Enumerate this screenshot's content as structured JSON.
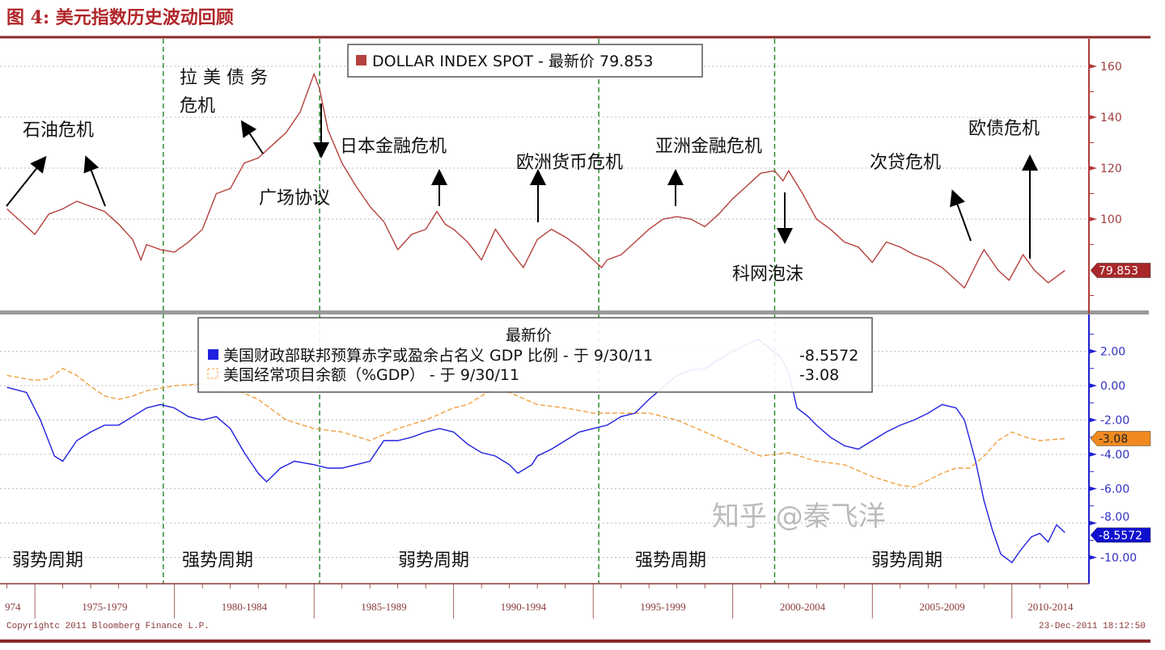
{
  "title": "图 4:  美元指数历史波动回顾",
  "colors": {
    "title": "#b0262a",
    "dollar": "#b5413f",
    "budget": "#2020e0",
    "current_account": "#f0a040",
    "event_line": "#2e8b2e",
    "frame": "#8b2a2a",
    "top_axis": "#b23a3a",
    "bottom_axis": "#2020d0"
  },
  "chart_data": [
    {
      "type": "line",
      "legend": {
        "label": "DOLLAR INDEX SPOT - 最新价  79.853",
        "placement": "top-center"
      },
      "series": [
        {
          "name": "DOLLAR INDEX SPOT",
          "last_value": "79.853",
          "x": [
            1974.0,
            1974.5,
            1975,
            1975.5,
            1976,
            1976.5,
            1977,
            1977.5,
            1978,
            1978.5,
            1978.8,
            1979,
            1979.5,
            1980,
            1980.5,
            1981,
            1981.5,
            1982,
            1982.5,
            1983,
            1983.5,
            1984,
            1984.5,
            1985,
            1985.2,
            1985.5,
            1986,
            1986.5,
            1987,
            1987.5,
            1988,
            1988.5,
            1989,
            1989.4,
            1989.7,
            1990,
            1990.5,
            1991,
            1991.5,
            1992,
            1992.5,
            1993,
            1993.5,
            1994,
            1994.5,
            1995,
            1995.3,
            1995.5,
            1996,
            1996.5,
            1997,
            1997.5,
            1998,
            1998.5,
            1999,
            1999.5,
            2000,
            2000.5,
            2001,
            2001.5,
            2001.8,
            2002,
            2002.5,
            2003,
            2003.5,
            2004,
            2004.5,
            2005,
            2005.5,
            2006,
            2006.5,
            2007,
            2007.5,
            2008,
            2008.3,
            2008.8,
            2009,
            2009.5,
            2009.9,
            2010.4,
            2010.8,
            2011.3,
            2011.9
          ],
          "y": [
            104,
            99,
            94,
            102,
            104,
            107,
            105,
            103,
            98,
            92,
            84,
            90,
            88,
            87,
            91,
            96,
            110,
            112,
            122,
            124,
            129,
            134,
            142,
            157,
            151,
            135,
            122,
            113,
            105,
            99,
            88,
            94,
            96,
            103,
            98,
            96,
            91,
            84,
            96,
            88,
            81,
            92,
            96,
            93,
            89,
            84,
            81,
            84,
            86,
            91,
            96,
            100,
            101,
            100,
            97,
            102,
            108,
            113,
            118,
            119,
            115,
            119,
            110,
            100,
            96,
            91,
            89,
            83,
            91,
            89,
            86,
            84,
            81,
            76,
            73,
            84,
            88,
            80,
            76,
            86,
            80,
            75,
            79.853
          ]
        }
      ],
      "yticks": [
        "160",
        "140",
        "120",
        "100"
      ],
      "ylim": [
        70,
        165
      ]
    },
    {
      "type": "line",
      "legend": {
        "header": "最新价",
        "placement": "top-center",
        "entries": [
          {
            "label": "美国财政部联邦预算赤字或盈余占名义 GDP 比例 -  于 9/30/11",
            "value": "-8.5572"
          },
          {
            "label": "美国经常项目余额（%GDP） -  于 9/30/11",
            "value": "-3.08"
          }
        ]
      },
      "series": [
        {
          "name": "美国财政部联邦预算赤字或盈余占名义 GDP 比例",
          "last_value": "-8.5572",
          "style": "solid",
          "x": [
            1974,
            1974.7,
            1975.2,
            1975.7,
            1976,
            1976.5,
            1977,
            1977.5,
            1978,
            1978.5,
            1979,
            1979.5,
            1980,
            1980.5,
            1981,
            1981.5,
            1982,
            1982.5,
            1983,
            1983.3,
            1983.8,
            1984.3,
            1985,
            1985.5,
            1986,
            1986.5,
            1987,
            1987.5,
            1988,
            1988.5,
            1989,
            1989.5,
            1990,
            1990.5,
            1991,
            1991.5,
            1992,
            1992.3,
            1992.8,
            1993,
            1993.5,
            1994,
            1994.5,
            1995,
            1995.5,
            1996,
            1996.5,
            1997,
            1997.5,
            1998,
            1998.5,
            1999,
            1999.5,
            2000,
            2000.5,
            2000.9,
            2001.3,
            2001.7,
            2002,
            2002.3,
            2002.7,
            2003,
            2003.5,
            2004,
            2004.5,
            2005,
            2005.5,
            2006,
            2006.5,
            2007,
            2007.5,
            2008,
            2008.3,
            2008.7,
            2009,
            2009.3,
            2009.6,
            2010,
            2010.3,
            2010.7,
            2011,
            2011.3,
            2011.6,
            2011.9
          ],
          "y": [
            -0.1,
            -0.4,
            -2.0,
            -4.1,
            -4.4,
            -3.2,
            -2.7,
            -2.3,
            -2.3,
            -1.8,
            -1.3,
            -1.1,
            -1.3,
            -1.8,
            -2.0,
            -1.8,
            -2.5,
            -3.9,
            -5.1,
            -5.6,
            -4.8,
            -4.4,
            -4.6,
            -4.8,
            -4.8,
            -4.6,
            -4.4,
            -3.2,
            -3.2,
            -3.0,
            -2.7,
            -2.5,
            -2.7,
            -3.4,
            -3.9,
            -4.1,
            -4.6,
            -5.1,
            -4.6,
            -4.1,
            -3.7,
            -3.2,
            -2.7,
            -2.5,
            -2.3,
            -1.8,
            -1.6,
            -0.8,
            -0.1,
            0.6,
            0.9,
            1.0,
            1.5,
            2.0,
            2.4,
            2.7,
            2.2,
            1.7,
            0.8,
            -1.3,
            -1.8,
            -2.3,
            -3.0,
            -3.5,
            -3.7,
            -3.2,
            -2.7,
            -2.3,
            -2.0,
            -1.6,
            -1.1,
            -1.3,
            -2.0,
            -4.4,
            -6.7,
            -8.4,
            -9.8,
            -10.3,
            -9.6,
            -8.8,
            -8.6,
            -9.1,
            -8.1,
            -8.5572
          ]
        },
        {
          "name": "美国经常项目余额（%GDP）",
          "last_value": "-3.08",
          "style": "dashed",
          "x": [
            1974,
            1975,
            1975.5,
            1976,
            1976.5,
            1977,
            1977.5,
            1978,
            1978.5,
            1979,
            1980,
            1981,
            1982,
            1983,
            1984,
            1985,
            1986,
            1987,
            1988,
            1989,
            1990,
            1990.5,
            1991,
            1991.5,
            1992,
            1993,
            1994,
            1995,
            1996,
            1997,
            1998,
            1999,
            2000,
            2001,
            2002,
            2003,
            2004,
            2005,
            2006,
            2006.5,
            2007,
            2007.5,
            2008,
            2008.5,
            2009,
            2009.5,
            2010,
            2010.5,
            2011,
            2011.9
          ],
          "y": [
            0.6,
            0.3,
            0.4,
            1.0,
            0.6,
            -0.05,
            -0.6,
            -0.8,
            -0.6,
            -0.3,
            0.0,
            0.1,
            -0.1,
            -0.8,
            -2.0,
            -2.5,
            -2.7,
            -3.2,
            -2.5,
            -2.0,
            -1.3,
            -1.1,
            -0.6,
            -0.1,
            -0.4,
            -1.1,
            -1.3,
            -1.6,
            -1.6,
            -1.6,
            -2.0,
            -2.7,
            -3.4,
            -4.1,
            -3.9,
            -4.4,
            -4.6,
            -5.3,
            -5.8,
            -5.9,
            -5.5,
            -5.1,
            -4.8,
            -4.8,
            -4.1,
            -3.2,
            -2.7,
            -3.0,
            -3.2,
            -3.08
          ]
        }
      ],
      "yticks": [
        "2.00",
        "0.00",
        "-2.00",
        "-4.00",
        "-6.00",
        "-8.00",
        "-10.00"
      ],
      "ylim": [
        -11,
        4
      ]
    }
  ],
  "xaxis": {
    "labels": [
      "974",
      "1975-1979",
      "1980-1984",
      "1985-1989",
      "1990-1994",
      "1995-1999",
      "2000-2004",
      "2005-2009",
      "2010-2014"
    ],
    "xlim": [
      1973.75,
      2012.76
    ]
  },
  "event_lines": [
    1979.6,
    1985.2,
    1995.2,
    2001.5
  ],
  "annotations": [
    "石油危机",
    "拉 美 债 务",
    "危机",
    "广场协议",
    "日本金融危机",
    "欧洲货币危机",
    "亚洲金融危机",
    "科网泡沫",
    "次贷危机",
    "欧债危机"
  ],
  "cycles": [
    "弱势周期",
    "强势周期",
    "弱势周期",
    "强势周期",
    "弱势周期"
  ],
  "footer": {
    "copyright": "Copyrightc 2011 Bloomberg Finance L.P.",
    "timestamp": "23-Dec-2011 18:12:50"
  },
  "watermark": "知乎 @秦飞洋"
}
